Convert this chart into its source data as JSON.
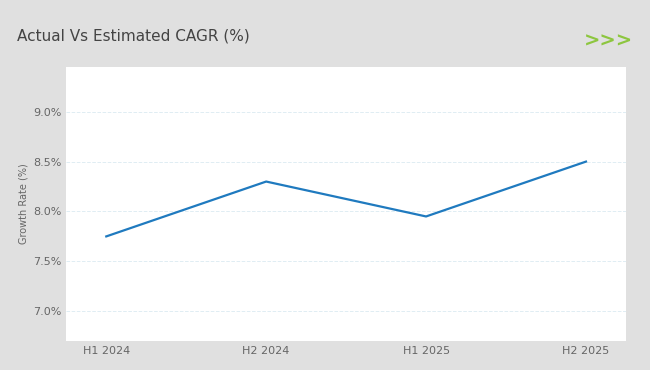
{
  "title": "Actual Vs Estimated CAGR (%)",
  "x_labels": [
    "H1 2024",
    "H2 2024",
    "H1 2025",
    "H2 2025"
  ],
  "y_values": [
    7.75,
    8.3,
    7.95,
    8.5
  ],
  "line_color": "#1f7abf",
  "ylabel": "Growth Rate (%)",
  "yticks": [
    7.0,
    7.5,
    8.0,
    8.5,
    9.0
  ],
  "ytick_labels": [
    "7.0%",
    "7.5%",
    "8.0%",
    "8.5%",
    "9.0%"
  ],
  "ylim": [
    6.7,
    9.45
  ],
  "bg_outer": "#e0e0e0",
  "bg_card": "#ffffff",
  "green_line_color": "#8dc63f",
  "arrow_color": "#8dc63f",
  "title_fontsize": 11,
  "title_color": "#444444",
  "line_width": 1.6,
  "grid_color": "#d8e8f0",
  "tick_color": "#666666",
  "tick_fontsize": 8,
  "ylabel_fontsize": 7
}
